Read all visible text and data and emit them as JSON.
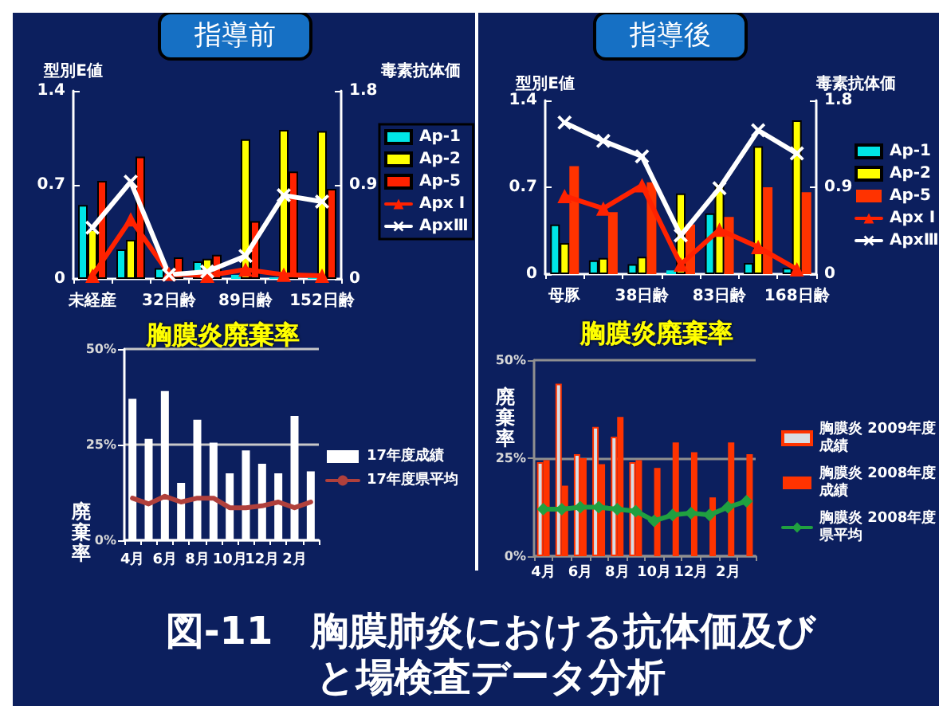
{
  "chart_data": [
    {
      "type": "bar",
      "title": "指導前",
      "ylabel": "型別E値",
      "y2label": "毒素抗体価",
      "categories": [
        "未経産",
        null,
        "32日齢",
        null,
        "89日齢",
        null,
        "152日齢"
      ],
      "series": [
        {
          "name": "Ap-1",
          "color": "#00e5e5",
          "values": [
            0.55,
            0.22,
            0.08,
            0.13,
            0.03,
            0.01,
            0.01
          ]
        },
        {
          "name": "Ap-2",
          "color": "#ffff00",
          "values": [
            0.37,
            0.29,
            null,
            0.15,
            1.04,
            1.11,
            1.1
          ]
        },
        {
          "name": "Ap-5",
          "color": "#ff2200",
          "values": [
            0.73,
            0.91,
            0.16,
            0.18,
            0.43,
            0.8,
            0.67
          ]
        },
        {
          "name": "Apx Ⅰ",
          "type": "line",
          "axis": "y2",
          "color": "#ff2200",
          "marker": "triangle",
          "values": [
            0.03,
            0.57,
            0.05,
            0.03,
            0.09,
            0.04,
            0.03
          ]
        },
        {
          "name": "ApxⅢ",
          "type": "line",
          "axis": "y2",
          "color": "#ffffff",
          "marker": "cross",
          "values": [
            0.49,
            0.93,
            0.04,
            0.07,
            0.22,
            0.8,
            0.74
          ]
        }
      ],
      "ylim": [
        0,
        1.4
      ],
      "yticks": [
        0,
        0.7,
        1.4
      ],
      "y2lim": [
        0,
        1.8
      ],
      "y2ticks": [
        0,
        0.9,
        1.8
      ],
      "legend": "right"
    },
    {
      "type": "bar",
      "title": "指導後",
      "ylabel": "型別E値",
      "y2label": "毒素抗体価",
      "categories": [
        "母豚",
        null,
        "38日齢",
        null,
        "83日齢",
        null,
        "168日齢"
      ],
      "series": [
        {
          "name": "Ap-1",
          "color": "#00e5e5",
          "values": [
            0.4,
            0.11,
            0.08,
            0.03,
            0.49,
            0.09,
            0.05
          ]
        },
        {
          "name": "Ap-2",
          "color": "#ffff00",
          "values": [
            0.25,
            0.13,
            0.14,
            0.65,
            0.73,
            1.03,
            1.24
          ]
        },
        {
          "name": "Ap-5",
          "color": "#ff3300",
          "values": [
            0.87,
            0.5,
            0.74,
            0.4,
            0.46,
            0.7,
            0.66
          ]
        },
        {
          "name": "Apx Ⅰ",
          "type": "line",
          "axis": "y2",
          "color": "#ff2200",
          "marker": "triangle",
          "values": [
            0.81,
            0.68,
            0.92,
            0.1,
            0.46,
            0.28,
            0.05
          ]
        },
        {
          "name": "ApxⅢ",
          "type": "line",
          "axis": "y2",
          "color": "#ffffff",
          "marker": "cross",
          "values": [
            1.57,
            1.38,
            1.22,
            0.4,
            0.89,
            1.49,
            1.25
          ]
        }
      ],
      "ylim": [
        0,
        1.4
      ],
      "yticks": [
        0,
        0.7,
        1.4
      ],
      "y2lim": [
        0,
        1.8
      ],
      "y2ticks": [
        0,
        0.9,
        1.8
      ],
      "legend": "right"
    },
    {
      "type": "bar",
      "title": "胸膜炎廃棄率",
      "ylabel": "廃棄率",
      "categories": [
        "4月",
        null,
        "6月",
        null,
        "8月",
        null,
        "10月",
        null,
        "12月",
        null,
        "2月",
        null
      ],
      "series": [
        {
          "name": "17年度成績",
          "color": "#ffffff",
          "values": [
            37,
            26.5,
            39,
            15,
            31.5,
            25.5,
            17.5,
            23.5,
            20,
            17.5,
            32.5,
            18
          ]
        },
        {
          "name": "17年度県平均",
          "type": "line",
          "color": "#b0403c",
          "values": [
            11,
            9.5,
            11.5,
            10,
            11,
            11,
            8.5,
            8.5,
            9,
            10,
            8.5,
            10
          ]
        }
      ],
      "ylim": [
        0,
        50
      ],
      "yticks": [
        {
          "value": 0,
          "label": "0%"
        },
        {
          "value": 25,
          "label": "25%"
        },
        {
          "value": 50,
          "label": "50%"
        }
      ],
      "grid": "y",
      "legend": "right"
    },
    {
      "type": "bar",
      "title": "胸膜炎廃棄率",
      "ylabel": "廃棄率",
      "categories": [
        "4月",
        null,
        "6月",
        null,
        "8月",
        null,
        "10月",
        null,
        "12月",
        null,
        "2月",
        null
      ],
      "series": [
        {
          "name": "胸膜炎 2009年度成績",
          "color": "#d8dde3",
          "values": [
            24,
            44,
            26,
            33,
            30.5,
            24,
            null,
            null,
            null,
            null,
            null,
            null
          ]
        },
        {
          "name": "胸膜炎 2008年度成績",
          "color": "#ff3300",
          "values": [
            24.5,
            18,
            25,
            23.5,
            35.5,
            24.5,
            22.5,
            29,
            26.5,
            15,
            29,
            26
          ]
        },
        {
          "name": "胸膜炎 2008年度県平均",
          "type": "line",
          "color": "#20a040",
          "marker": "diamond",
          "values": [
            12,
            12,
            12.5,
            12.5,
            12,
            11.5,
            9,
            10.5,
            11,
            10.5,
            12.5,
            14
          ]
        }
      ],
      "ylim": [
        0,
        50
      ],
      "yticks": [
        {
          "value": 0,
          "label": "0%"
        },
        {
          "value": 25,
          "label": "25%"
        },
        {
          "value": 50,
          "label": "50%"
        }
      ],
      "grid": "y",
      "legend": "right",
      "annotations": [
        "図-11　胸膜肺炎における抗体価及びと場検査データ分析"
      ]
    }
  ]
}
